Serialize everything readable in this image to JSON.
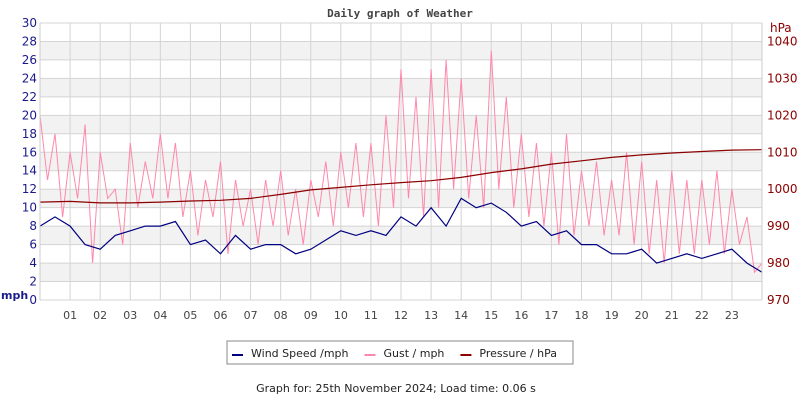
{
  "chart_data": {
    "type": "line",
    "title": "Daily graph of Weather",
    "footer": "Graph for: 25th November 2024; Load time: 0.06 s",
    "ylabel_left": "mph",
    "ylabel_right": "hPa",
    "xlim": [
      0,
      24
    ],
    "ylim_left": [
      0,
      30
    ],
    "ylim_right": [
      970,
      1045
    ],
    "x_tick_labels": [
      "01",
      "02",
      "03",
      "04",
      "05",
      "06",
      "07",
      "08",
      "09",
      "10",
      "11",
      "12",
      "13",
      "14",
      "15",
      "16",
      "17",
      "18",
      "19",
      "20",
      "21",
      "22",
      "23"
    ],
    "left_ticks": [
      0,
      2,
      4,
      6,
      8,
      10,
      12,
      14,
      16,
      18,
      20,
      22,
      24,
      26,
      28,
      30
    ],
    "right_ticks": [
      970,
      980,
      990,
      1000,
      1010,
      1020,
      1030,
      1040
    ],
    "grid": true,
    "legend_position": "bottom",
    "series": [
      {
        "name": "Wind Speed /mph",
        "axis": "left",
        "color": "#000080",
        "values": [
          8,
          9,
          8,
          6,
          5.5,
          7,
          7.5,
          8,
          8,
          8.5,
          6,
          6.5,
          5,
          7,
          5.5,
          6,
          6,
          5,
          5.5,
          6.5,
          7.5,
          7,
          7.5,
          7,
          9,
          8,
          10,
          8,
          11,
          10,
          10.5,
          9.5,
          8,
          8.5,
          7,
          7.5,
          6,
          6,
          5,
          5,
          5.5,
          4,
          4.5,
          5,
          4.5,
          5,
          5.5,
          4,
          3
        ]
      },
      {
        "name": "Gust / mph",
        "axis": "left",
        "color": "#ff88aa",
        "values": [
          20,
          13,
          18,
          9,
          16,
          11,
          19,
          4,
          16,
          11,
          12,
          6,
          17,
          10,
          15,
          11,
          18,
          11,
          17,
          9,
          14,
          7,
          13,
          9,
          15,
          5,
          13,
          8,
          12,
          6,
          13,
          8,
          14,
          7,
          12,
          6,
          13,
          9,
          15,
          8,
          16,
          10,
          17,
          9,
          17,
          8,
          20,
          10,
          25,
          11,
          22,
          9,
          25,
          10,
          26,
          12,
          24,
          11,
          20,
          10,
          27,
          12,
          22,
          10,
          18,
          9,
          17,
          8,
          16,
          6,
          18,
          7,
          14,
          8,
          15,
          7,
          13,
          7,
          16,
          6,
          15,
          5,
          13,
          4,
          14,
          5,
          13,
          5,
          13,
          6,
          14,
          5,
          12,
          6,
          9,
          3,
          4
        ]
      },
      {
        "name": "Pressure / hPa",
        "axis": "right",
        "color": "#8b0000",
        "values": [
          996.5,
          996.7,
          996.3,
          996.3,
          996.5,
          996.8,
          997,
          997.5,
          998.6,
          999.8,
          1000.5,
          1001.2,
          1001.8,
          1002.3,
          1003.2,
          1004.5,
          1005.5,
          1006.8,
          1007.7,
          1008.6,
          1009.3,
          1009.8,
          1010.2,
          1010.6,
          1010.7
        ]
      }
    ]
  }
}
